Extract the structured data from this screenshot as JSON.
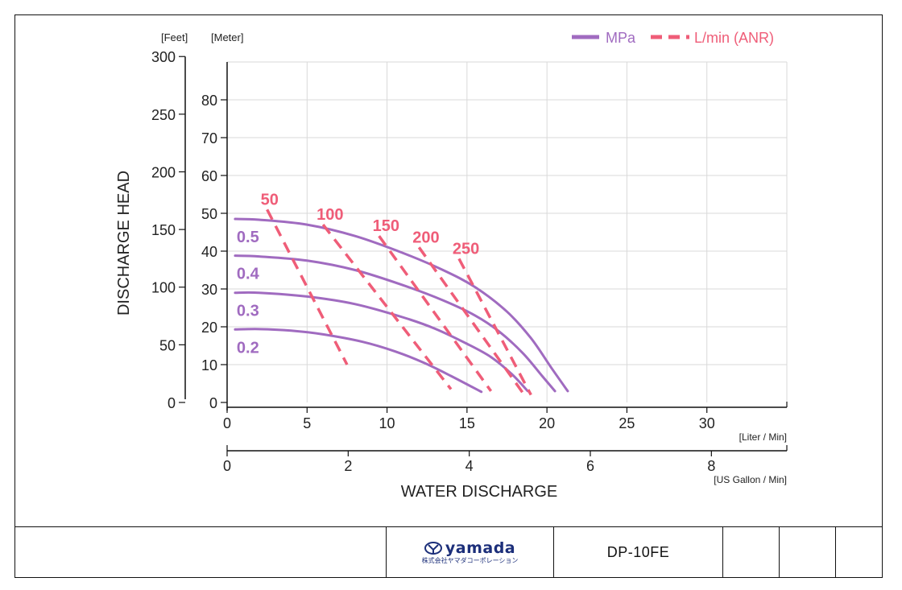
{
  "chart_data": {
    "type": "line",
    "ylabel": "DISCHARGE HEAD",
    "xlabel": "WATER DISCHARGE",
    "y_unit_left": "[Feet]",
    "y_unit_right": "[Meter]",
    "x_unit_top": "[Liter / Min]",
    "x_unit_bottom": "[US Gallon / Min]",
    "xlim_liter": [
      0,
      35
    ],
    "ylim_meter": [
      0,
      90
    ],
    "xticks_liter": [
      0,
      5,
      10,
      15,
      20,
      25,
      30
    ],
    "xticks_gallon": [
      0,
      2,
      4,
      6,
      8
    ],
    "yticks_meter": [
      0,
      10,
      20,
      30,
      40,
      50,
      60,
      70,
      80
    ],
    "yticks_feet": [
      0,
      50,
      100,
      150,
      200,
      250,
      300
    ],
    "grid": true,
    "legend": {
      "position": "top-right",
      "entries": [
        {
          "label": "MPa",
          "style": "solid",
          "color": "#a06bc0"
        },
        {
          "label": "L/min (ANR)",
          "style": "dashed",
          "color": "#ef5d78"
        }
      ]
    },
    "pressure_series": [
      {
        "name": "0.5",
        "color": "#a06bc0",
        "points": [
          [
            0.5,
            48.5
          ],
          [
            2,
            48.3
          ],
          [
            5,
            47
          ],
          [
            8,
            44
          ],
          [
            11,
            39.5
          ],
          [
            13.5,
            35
          ],
          [
            15.5,
            30.5
          ],
          [
            17.5,
            24
          ],
          [
            19,
            17
          ],
          [
            20.3,
            9
          ],
          [
            21.3,
            3
          ]
        ]
      },
      {
        "name": "0.4",
        "color": "#a06bc0",
        "points": [
          [
            0.5,
            38.8
          ],
          [
            2,
            38.6
          ],
          [
            5,
            37.5
          ],
          [
            8,
            35
          ],
          [
            11,
            31
          ],
          [
            13.5,
            27
          ],
          [
            15.5,
            23
          ],
          [
            17,
            18.8
          ],
          [
            18.5,
            13
          ],
          [
            19.7,
            7
          ],
          [
            20.5,
            3
          ]
        ]
      },
      {
        "name": "0.3",
        "color": "#a06bc0",
        "points": [
          [
            0.5,
            29
          ],
          [
            2,
            29
          ],
          [
            5,
            28
          ],
          [
            8,
            26
          ],
          [
            11,
            22.5
          ],
          [
            13,
            19.5
          ],
          [
            15,
            15.5
          ],
          [
            16.5,
            12
          ],
          [
            17.8,
            7.5
          ],
          [
            18.8,
            3
          ]
        ]
      },
      {
        "name": "0.2",
        "color": "#a06bc0",
        "points": [
          [
            0.5,
            19.3
          ],
          [
            2,
            19.4
          ],
          [
            4,
            19
          ],
          [
            6,
            18
          ],
          [
            8.5,
            16
          ],
          [
            10.5,
            13.5
          ],
          [
            12.3,
            10.5
          ],
          [
            14,
            7
          ],
          [
            15.9,
            2.8
          ]
        ]
      }
    ],
    "air_series": [
      {
        "name": "50",
        "color": "#ef5d78",
        "points": [
          [
            2.5,
            51
          ],
          [
            7.5,
            10
          ]
        ]
      },
      {
        "name": "100",
        "color": "#ef5d78",
        "points": [
          [
            6,
            47
          ],
          [
            14,
            3.5
          ]
        ]
      },
      {
        "name": "150",
        "color": "#ef5d78",
        "points": [
          [
            9.5,
            44
          ],
          [
            16.5,
            3
          ]
        ]
      },
      {
        "name": "200",
        "color": "#ef5d78",
        "points": [
          [
            12,
            41
          ],
          [
            18.5,
            2.5
          ]
        ]
      },
      {
        "name": "250",
        "color": "#ef5d78",
        "points": [
          [
            14.5,
            38
          ],
          [
            19,
            2
          ]
        ]
      }
    ]
  },
  "title_block": {
    "logo_text": "yamada",
    "logo_sub": "株式会社ヤマダコーポレーション",
    "model": "DP-10FE"
  }
}
